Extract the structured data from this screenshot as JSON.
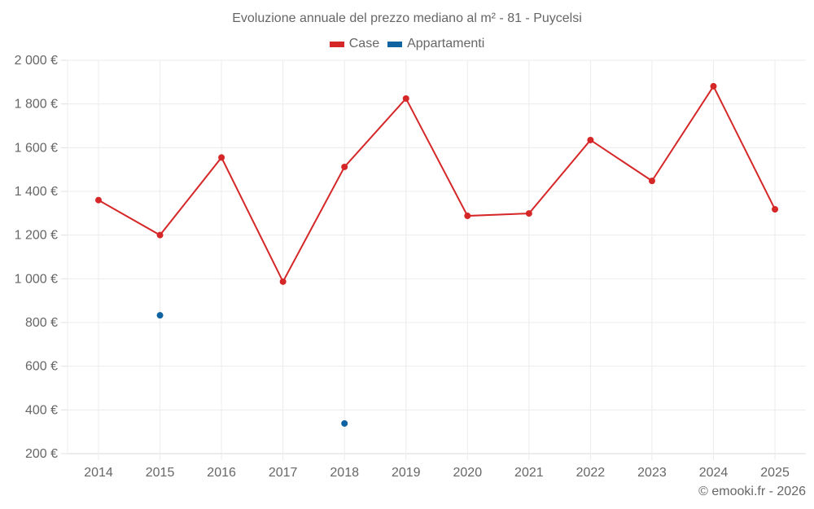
{
  "title": "Evoluzione annuale del prezzo mediano al m² - 81 - Puycelsi",
  "legend": [
    {
      "label": "Case",
      "color": "#d62728"
    },
    {
      "label": "Appartamenti",
      "color": "#0f63a0"
    }
  ],
  "footer": "© emooki.fr - 2026",
  "chart_data": {
    "type": "line",
    "title": "Evoluzione annuale del prezzo mediano al m² - 81 - Puycelsi",
    "xlabel": "",
    "ylabel": "",
    "categories": [
      "2014",
      "2015",
      "2016",
      "2017",
      "2018",
      "2019",
      "2020",
      "2021",
      "2022",
      "2023",
      "2024",
      "2025"
    ],
    "series": [
      {
        "name": "Case",
        "color": "#d62728",
        "values": [
          1360,
          1200,
          1555,
          987,
          1512,
          1825,
          1288,
          1299,
          1635,
          1448,
          1881,
          1318
        ]
      },
      {
        "name": "Appartamenti",
        "color": "#0f63a0",
        "values": [
          null,
          833,
          null,
          null,
          338,
          null,
          null,
          null,
          null,
          null,
          null,
          null
        ]
      }
    ],
    "yticks": [
      200,
      400,
      600,
      800,
      1000,
      1200,
      1400,
      1600,
      1800,
      2000
    ],
    "ytick_labels": [
      "200 €",
      "400 €",
      "600 €",
      "800 €",
      "1 000 €",
      "1 200 €",
      "1 400 €",
      "1 600 €",
      "1 800 €",
      "2 000 €"
    ],
    "ylim": [
      200,
      2000
    ],
    "grid": true,
    "legend_position": "top"
  }
}
